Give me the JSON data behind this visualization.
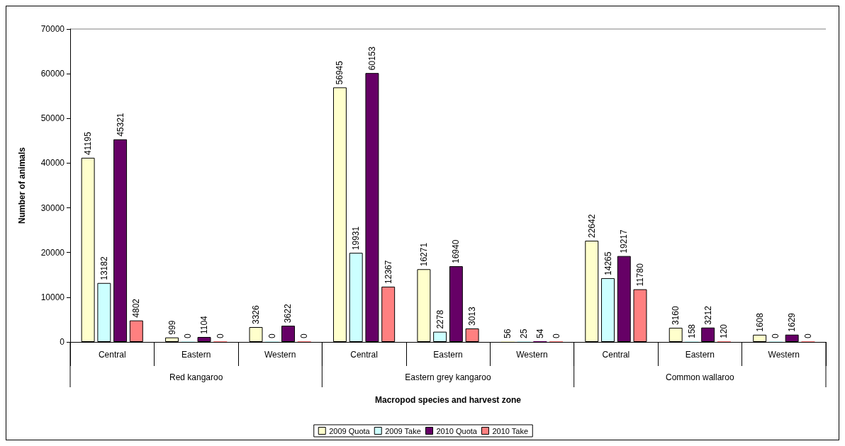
{
  "chart_data": {
    "type": "bar",
    "xlabel": "Macropod species and harvest zone",
    "ylabel": "Number of animals",
    "categories": [
      "Central",
      "Eastern",
      "Western",
      "Central",
      "Eastern",
      "Western",
      "Central",
      "Eastern",
      "Western"
    ],
    "annotations": [
      "Red kangaroo",
      "Eastern grey kangaroo",
      "Common wallaroo"
    ],
    "series": [
      {
        "name": "2009 Quota",
        "color": "#ffffcc",
        "values": [
          41195,
          999,
          3326,
          56945,
          16271,
          56,
          22642,
          3160,
          1608
        ]
      },
      {
        "name": "2009 Take",
        "color": "#ccffff",
        "values": [
          13182,
          0,
          0,
          19931,
          2278,
          25,
          14265,
          158,
          0
        ]
      },
      {
        "name": "2010 Quota",
        "color": "#660066",
        "values": [
          45321,
          1104,
          3622,
          60153,
          16940,
          54,
          19217,
          3212,
          1629
        ]
      },
      {
        "name": "2010 Take",
        "color": "#ff8080",
        "values": [
          4802,
          0,
          0,
          12367,
          3013,
          0,
          11780,
          120,
          0
        ]
      }
    ],
    "ylim": [
      0,
      70000
    ],
    "yticks": [
      0,
      10000,
      20000,
      30000,
      40000,
      50000,
      60000,
      70000
    ],
    "data_labels": true,
    "grid": false,
    "legend": "bottom"
  }
}
